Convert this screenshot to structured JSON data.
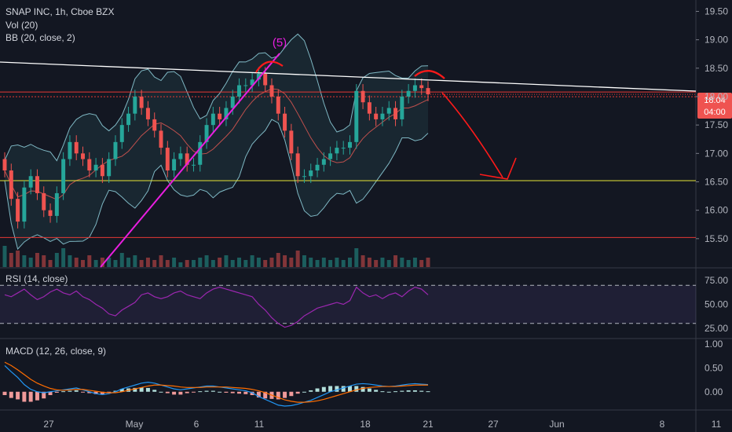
{
  "header": {
    "title": "SNAP INC, 1h, Cboe BZX",
    "vol_label": "Vol (20)",
    "bb_label": "BB (20, close, 2)"
  },
  "rsi_panel": {
    "label": "RSI (14, close)"
  },
  "macd_panel": {
    "label": "MACD (12, 26, close, 9)"
  },
  "colors": {
    "background": "#131722",
    "up": "#26a69a",
    "down": "#ef5350",
    "bollinger": "#7fb8c4",
    "bollinger_basis": "#c0504d",
    "trendline_white": "#ffffff",
    "trendline_magenta": "#e91ee0",
    "support_yellow": "#e6e635",
    "red_lines": "#e53935",
    "rsi": "#9c27b0",
    "macd": "#2196f3",
    "signal": "#ff6d00",
    "annotation_red": "#ff1a1a",
    "price_tag": "#ef5350"
  },
  "chart_data": [
    {
      "type": "candlestick",
      "title": "SNAP INC, 1h, Cboe BZX",
      "y_axis_ticks": [
        "19.50",
        "19.00",
        "18.50",
        "18.00",
        "17.50",
        "17.00",
        "16.50",
        "16.00",
        "15.50"
      ],
      "ylim": [
        15.0,
        19.7
      ],
      "x_axis_ticks": [
        "27",
        "May",
        "6",
        "11",
        "18",
        "21",
        "27",
        "Jun",
        "8",
        "11"
      ],
      "current_price": "18.04",
      "price_countdown": "04:00",
      "close_series": [
        16.7,
        16.2,
        15.8,
        16.4,
        16.6,
        16.3,
        16.0,
        15.9,
        16.3,
        16.9,
        17.2,
        17.0,
        16.9,
        16.7,
        16.8,
        16.6,
        16.9,
        17.2,
        17.5,
        17.7,
        18.0,
        17.8,
        17.6,
        17.4,
        17.1,
        16.7,
        16.9,
        17.0,
        16.8,
        16.8,
        17.2,
        17.5,
        17.7,
        17.6,
        17.8,
        18.0,
        18.2,
        18.2,
        18.3,
        18.4,
        18.2,
        18.0,
        17.7,
        17.4,
        17.0,
        16.6,
        16.6,
        16.7,
        16.8,
        16.9,
        17.0,
        17.1,
        17.1,
        17.2,
        18.1,
        17.9,
        17.7,
        17.6,
        17.7,
        17.8,
        17.6,
        18.0,
        18.1,
        18.2,
        18.15,
        18.04
      ],
      "horizontal_levels": {
        "yellow": 16.52,
        "red_upper": 18.04,
        "red_lower": 15.52
      },
      "annotation_wave_label": "(5)"
    },
    {
      "type": "bar",
      "title": "Vol (20)",
      "values": [
        0.9,
        0.6,
        0.7,
        0.5,
        0.4,
        0.6,
        0.5,
        0.3,
        0.6,
        0.8,
        0.5,
        0.4,
        0.3,
        0.5,
        0.3,
        0.4,
        0.4,
        0.3,
        0.6,
        0.4,
        0.5,
        0.3,
        0.4,
        0.3,
        0.5,
        0.3,
        0.4,
        0.2,
        0.3,
        0.3,
        0.4,
        0.5,
        0.3,
        0.4,
        0.5,
        0.3,
        0.4,
        0.3,
        0.5,
        0.4,
        0.3,
        0.4,
        0.6,
        0.5,
        0.4,
        0.7,
        0.5,
        0.4,
        0.3,
        0.4,
        0.3,
        0.4,
        0.3,
        0.4,
        0.8,
        0.5,
        0.4,
        0.3,
        0.4,
        0.3,
        0.5,
        0.4,
        0.3,
        0.4,
        0.3,
        0.4
      ]
    },
    {
      "type": "line",
      "title": "RSI (14, close)",
      "y_axis_ticks": [
        "75.00",
        "50.00",
        "25.00"
      ],
      "ylim": [
        15,
        85
      ],
      "bands": [
        70,
        30
      ],
      "values": [
        60,
        58,
        62,
        66,
        60,
        55,
        58,
        63,
        66,
        62,
        60,
        64,
        58,
        55,
        50,
        46,
        40,
        38,
        44,
        48,
        52,
        60,
        62,
        58,
        56,
        58,
        62,
        64,
        60,
        58,
        56,
        62,
        66,
        68,
        66,
        64,
        62,
        60,
        58,
        50,
        44,
        36,
        30,
        26,
        28,
        32,
        38,
        42,
        46,
        48,
        50,
        52,
        50,
        54,
        68,
        62,
        58,
        60,
        56,
        60,
        62,
        58,
        64,
        68,
        66,
        60
      ]
    },
    {
      "type": "line",
      "title": "MACD (12, 26, close, 9)",
      "y_axis_ticks": [
        "1.00",
        "0.50",
        "0.00"
      ],
      "ylim": [
        -0.35,
        1.1
      ],
      "macd": [
        0.55,
        0.42,
        0.3,
        0.15,
        0.05,
        0.0,
        -0.02,
        0.0,
        0.02,
        0.04,
        0.06,
        0.08,
        0.04,
        0.0,
        -0.04,
        -0.06,
        -0.04,
        0.0,
        0.06,
        0.1,
        0.14,
        0.18,
        0.2,
        0.18,
        0.14,
        0.1,
        0.06,
        0.04,
        0.06,
        0.08,
        0.1,
        0.12,
        0.12,
        0.1,
        0.08,
        0.06,
        0.04,
        0.02,
        -0.02,
        -0.1,
        -0.16,
        -0.22,
        -0.28,
        -0.3,
        -0.29,
        -0.26,
        -0.22,
        -0.18,
        -0.12,
        -0.06,
        0.0,
        0.04,
        0.08,
        0.12,
        0.16,
        0.17,
        0.16,
        0.14,
        0.12,
        0.11,
        0.12,
        0.14,
        0.16,
        0.17,
        0.16,
        0.15
      ],
      "signal": [
        0.62,
        0.55,
        0.46,
        0.36,
        0.26,
        0.18,
        0.12,
        0.07,
        0.04,
        0.03,
        0.04,
        0.05,
        0.05,
        0.03,
        0.01,
        -0.01,
        -0.02,
        -0.02,
        0.0,
        0.03,
        0.06,
        0.09,
        0.12,
        0.14,
        0.14,
        0.13,
        0.12,
        0.1,
        0.09,
        0.09,
        0.09,
        0.1,
        0.1,
        0.1,
        0.1,
        0.09,
        0.08,
        0.07,
        0.05,
        0.02,
        -0.02,
        -0.07,
        -0.12,
        -0.17,
        -0.2,
        -0.22,
        -0.22,
        -0.21,
        -0.19,
        -0.16,
        -0.12,
        -0.08,
        -0.04,
        0.0,
        0.04,
        0.07,
        0.09,
        0.1,
        0.11,
        0.11,
        0.11,
        0.12,
        0.13,
        0.14,
        0.14,
        0.14
      ]
    }
  ]
}
